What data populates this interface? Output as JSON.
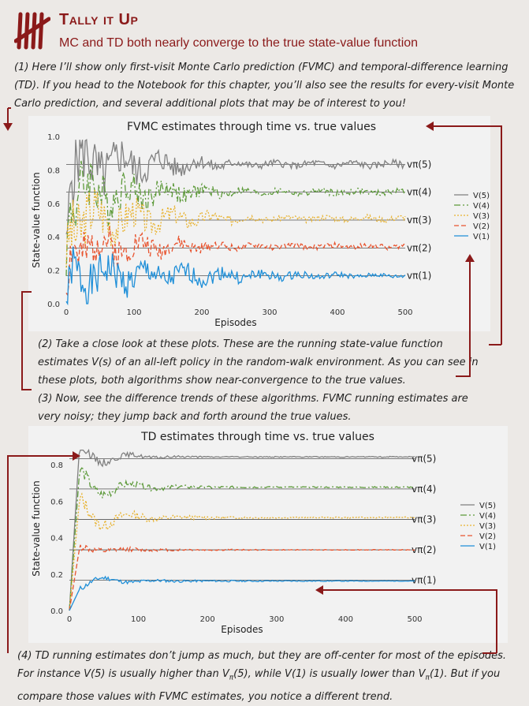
{
  "header": {
    "title": "Tally it Up",
    "subtitle": "MC and TD both nearly converge to the true state-value function"
  },
  "notes": {
    "n1": "(1) Here I’ll show only first-visit Monte Carlo prediction (FVMC) and temporal-difference learning (TD). If you head to the Notebook for this chapter, you’ll also see the results for every-visit Monte Carlo prediction, and several additional plots that may be of interest to you!",
    "n2": "(2) Take a close look at these plots. These are the running state-value function estimates V(s) of an all-left policy in the random-walk environment. As you can see in these plots, both algorithms show near-convergence to the true values.",
    "n3": "(3) Now, see the difference trends of these algorithms. FVMC running estimates are very noisy; they jump back and forth around the true values.",
    "n4a": "(4) TD running estimates don’t jump as much, but they are off-center for most of the episodes. For instance V(5) is usually higher than V",
    "n4b": "(5), while V(1) is usually lower than V",
    "n4c": "(1). But if you compare those values with FVMC estimates, you notice a different trend.",
    "pi": "π"
  },
  "colors": {
    "accent": "#8b1a1a"
  },
  "chart_data": [
    {
      "type": "line",
      "title": "FVMC estimates through time vs. true values",
      "xlabel": "Episodes",
      "ylabel": "State-value function",
      "xlim": [
        0,
        500
      ],
      "ylim": [
        0,
        1.0
      ],
      "xticks": [
        "0",
        "100",
        "200",
        "300",
        "400",
        "500"
      ],
      "yticks": [
        "0.0",
        "0.2",
        "0.4",
        "0.6",
        "0.8",
        "1.0"
      ],
      "legend_position": "right",
      "true_value_labels": [
        "vπ(5)",
        "vπ(4)",
        "vπ(3)",
        "vπ(2)",
        "vπ(1)"
      ],
      "true_values": [
        0.833,
        0.667,
        0.5,
        0.333,
        0.167
      ],
      "series": [
        {
          "name": "V(5)",
          "color": "#808080",
          "dash": "",
          "target": 0.833,
          "start": 0.3,
          "noise": 0.12,
          "settle": 110,
          "seed": 5,
          "final_bias": 0.0
        },
        {
          "name": "V(4)",
          "color": "#5d9a3a",
          "dash": "8,3,2,3",
          "target": 0.667,
          "start": 0.3,
          "noise": 0.11,
          "settle": 110,
          "seed": 4,
          "final_bias": 0.0
        },
        {
          "name": "V(3)",
          "color": "#e8b22e",
          "dash": "2,2",
          "target": 0.5,
          "start": 0.3,
          "noise": 0.1,
          "settle": 120,
          "seed": 3,
          "final_bias": 0.01
        },
        {
          "name": "V(2)",
          "color": "#e8542f",
          "dash": "6,3",
          "target": 0.333,
          "start": 0.1,
          "noise": 0.09,
          "settle": 110,
          "seed": 2,
          "final_bias": 0.01
        },
        {
          "name": "V(1)",
          "color": "#1f8fd8",
          "dash": "",
          "target": 0.167,
          "start": 0.0,
          "noise": 0.07,
          "settle": 180,
          "seed": 1,
          "final_bias": 0.0
        }
      ]
    },
    {
      "type": "line",
      "title": "TD estimates through time vs. true values",
      "xlabel": "Episodes",
      "ylabel": "State-value function",
      "xlim": [
        0,
        500
      ],
      "ylim": [
        0,
        0.9
      ],
      "xticks": [
        "0",
        "100",
        "200",
        "300",
        "400",
        "500"
      ],
      "yticks": [
        "0.0",
        "0.2",
        "0.4",
        "0.6",
        "0.8"
      ],
      "legend_position": "right",
      "true_value_labels": [
        "vπ(5)",
        "vπ(4)",
        "vπ(3)",
        "vπ(2)",
        "vπ(1)"
      ],
      "true_values": [
        0.833,
        0.667,
        0.5,
        0.333,
        0.167
      ],
      "series": [
        {
          "name": "V(5)",
          "color": "#808080",
          "dash": "",
          "target": 0.833,
          "start": 0.0,
          "noise": 0.035,
          "settle": 90,
          "seed": 15,
          "final_bias": 0.01,
          "peak": 0.92
        },
        {
          "name": "V(4)",
          "color": "#5d9a3a",
          "dash": "8,3,2,3",
          "target": 0.667,
          "start": 0.0,
          "noise": 0.04,
          "settle": 120,
          "seed": 14,
          "final_bias": 0.01,
          "peak": 0.78
        },
        {
          "name": "V(3)",
          "color": "#e8b22e",
          "dash": "2,2",
          "target": 0.5,
          "start": 0.0,
          "noise": 0.045,
          "settle": 130,
          "seed": 13,
          "final_bias": 0.01,
          "peak": 0.62
        },
        {
          "name": "V(2)",
          "color": "#e8542f",
          "dash": "6,3",
          "target": 0.333,
          "start": 0.0,
          "noise": 0.025,
          "settle": 120,
          "seed": 12,
          "final_bias": 0.0,
          "peak": 0.35
        },
        {
          "name": "V(1)",
          "color": "#1f8fd8",
          "dash": "",
          "target": 0.167,
          "start": 0.0,
          "noise": 0.015,
          "settle": 200,
          "seed": 11,
          "final_bias": -0.005,
          "peak": 0.12
        }
      ]
    }
  ]
}
